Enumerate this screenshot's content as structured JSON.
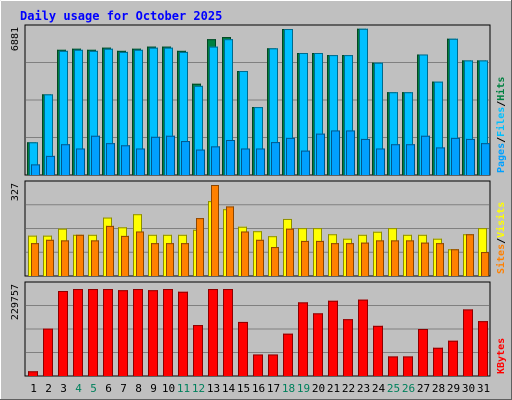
{
  "chart_data": [
    {
      "type": "bar",
      "title": "Daily usage for October 2025",
      "ylabel_parts": [
        "Pages",
        "/",
        "Files",
        "/",
        "Hits"
      ],
      "ymax_label": "6881",
      "ylim": [
        0,
        6881
      ],
      "grid": true,
      "categories": [
        "1",
        "2",
        "3",
        "4",
        "5",
        "6",
        "7",
        "8",
        "9",
        "10",
        "11",
        "12",
        "13",
        "14",
        "15",
        "16",
        "17",
        "18",
        "19",
        "20",
        "21",
        "22",
        "23",
        "24",
        "25",
        "26",
        "27",
        "28",
        "29",
        "30",
        "31"
      ],
      "weekend_days": [
        "4",
        "5",
        "11",
        "12",
        "18",
        "19",
        "25",
        "26"
      ],
      "series": [
        {
          "name": "Hits",
          "values": [
            1540,
            3800,
            5900,
            5950,
            5900,
            6000,
            5850,
            5950,
            6050,
            6050,
            5850,
            4300,
            6400,
            6500,
            4900,
            3200,
            5970,
            6880,
            5750,
            5750,
            5650,
            5650,
            6890,
            5290,
            3900,
            3900,
            5680,
            4400,
            6420,
            5400,
            5400
          ]
        },
        {
          "name": "Files",
          "values": [
            1540,
            3800,
            5850,
            5900,
            5850,
            5950,
            5800,
            5900,
            6000,
            6000,
            5800,
            4200,
            6050,
            6400,
            4900,
            3200,
            5970,
            6880,
            5750,
            5750,
            5650,
            5650,
            6890,
            5290,
            3900,
            3900,
            5680,
            4400,
            6420,
            5400,
            5400
          ]
        },
        {
          "name": "Pages",
          "values": [
            500,
            900,
            1450,
            1250,
            1850,
            1500,
            1400,
            1250,
            1800,
            1850,
            1600,
            1200,
            1350,
            1650,
            1250,
            1250,
            1550,
            1750,
            1150,
            1950,
            2100,
            2100,
            1700,
            1250,
            1450,
            1450,
            1850,
            1300,
            1750,
            1700,
            1500
          ]
        }
      ],
      "colors": {
        "Hits": "#008040",
        "Files": "#00c0ff",
        "Pages": "#00a0ff"
      }
    },
    {
      "type": "bar",
      "ylabel_parts": [
        "Sites",
        "/",
        "Visits"
      ],
      "ymax_label": "327",
      "ylim": [
        0,
        327
      ],
      "grid": true,
      "categories": [
        "1",
        "2",
        "3",
        "4",
        "5",
        "6",
        "7",
        "8",
        "9",
        "10",
        "11",
        "12",
        "13",
        "14",
        "15",
        "16",
        "17",
        "18",
        "19",
        "20",
        "21",
        "22",
        "23",
        "24",
        "25",
        "26",
        "27",
        "28",
        "29",
        "30",
        "31"
      ],
      "series": [
        {
          "name": "Visits",
          "values": [
            145,
            145,
            170,
            148,
            148,
            210,
            175,
            222,
            148,
            148,
            148,
            166,
            269,
            240,
            177,
            161,
            143,
            205,
            172,
            172,
            150,
            134,
            148,
            159,
            172,
            148,
            148,
            134,
            96,
            150,
            172
          ]
        },
        {
          "name": "Sites",
          "values": [
            118,
            130,
            128,
            148,
            128,
            180,
            144,
            160,
            118,
            118,
            118,
            208,
            327,
            250,
            160,
            130,
            104,
            170,
            126,
            126,
            118,
            118,
            120,
            128,
            128,
            128,
            120,
            118,
            96,
            150,
            86
          ]
        }
      ],
      "colors": {
        "Visits": "#ffff00",
        "Sites": "#ff8000"
      }
    },
    {
      "type": "bar",
      "ylabel_parts": [
        "KBytes"
      ],
      "ymax_label": "229757",
      "ylim": [
        0,
        229757
      ],
      "grid": true,
      "categories": [
        "1",
        "2",
        "3",
        "4",
        "5",
        "6",
        "7",
        "8",
        "9",
        "10",
        "11",
        "12",
        "13",
        "14",
        "15",
        "16",
        "17",
        "18",
        "19",
        "20",
        "21",
        "22",
        "23",
        "24",
        "25",
        "26",
        "27",
        "28",
        "29",
        "30",
        "31"
      ],
      "series": [
        {
          "name": "KBytes",
          "values": [
            12000,
            121000,
            217000,
            222000,
            222000,
            222000,
            219000,
            222000,
            219000,
            222000,
            215000,
            130000,
            222000,
            222000,
            138000,
            55000,
            55000,
            108000,
            188000,
            160000,
            192000,
            145000,
            195000,
            128000,
            50000,
            50000,
            120000,
            72000,
            90000,
            170000,
            140000
          ]
        }
      ],
      "colors": {
        "KBytes": "#ff0000"
      }
    }
  ],
  "colors": {
    "background": "#c0c0c0",
    "title": "#0000ff",
    "day_label": "#000000",
    "weekend_label": "#00805c"
  }
}
